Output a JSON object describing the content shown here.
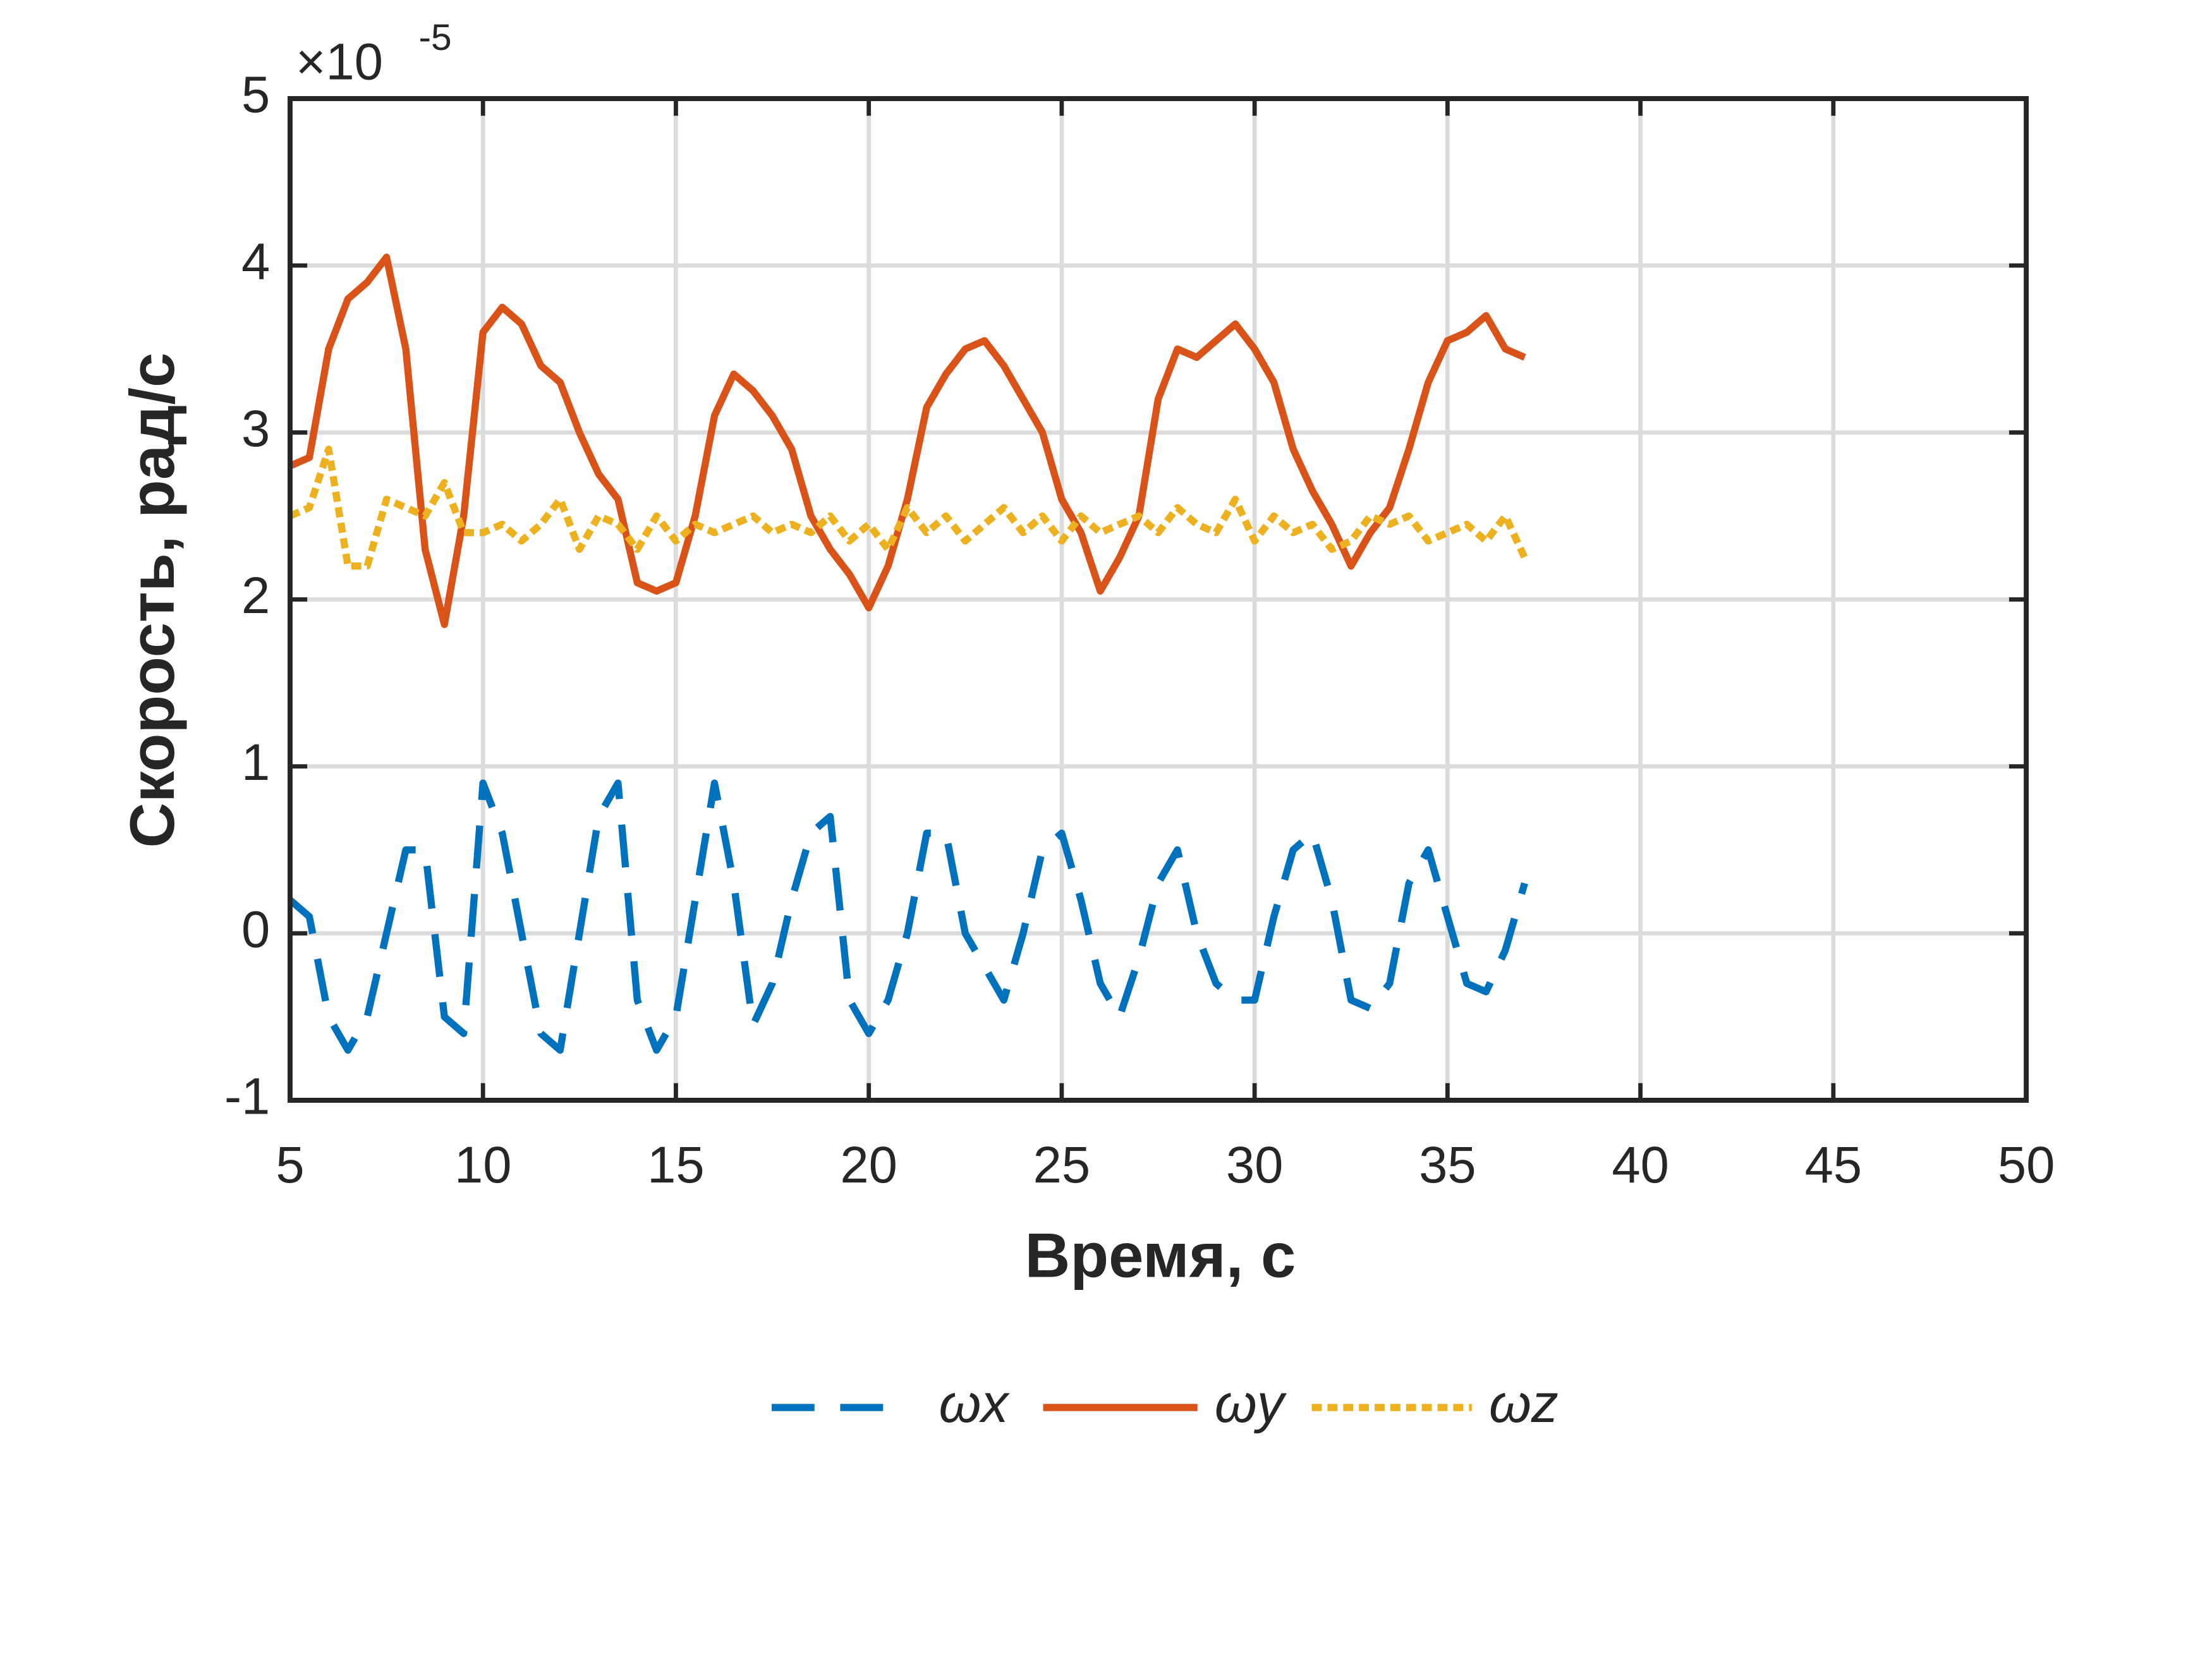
{
  "chart_data": {
    "type": "line",
    "xlabel": "Время, с",
    "ylabel": "Скорость, рад/с",
    "y_multiplier": {
      "base": "×10",
      "exponent": "-5"
    },
    "xlim": [
      5,
      50
    ],
    "ylim": [
      -1,
      5
    ],
    "xticks": [
      5,
      10,
      15,
      20,
      25,
      30,
      35,
      40,
      45,
      50
    ],
    "yticks": [
      -1,
      0,
      1,
      2,
      3,
      4,
      5
    ],
    "grid": true,
    "legend": "bottom",
    "x": [
      5,
      5.5,
      6,
      6.5,
      7,
      7.5,
      8,
      8.5,
      9,
      9.5,
      10,
      10.5,
      11,
      11.5,
      12,
      12.5,
      13,
      13.5,
      14,
      14.5,
      15,
      15.5,
      16,
      16.5,
      17,
      17.5,
      18,
      18.5,
      19,
      19.5,
      20,
      20.5,
      21,
      21.5,
      22,
      22.5,
      23,
      23.5,
      24,
      24.5,
      25,
      25.5,
      26,
      26.5,
      27,
      27.5,
      28,
      28.5,
      29,
      29.5,
      30,
      30.5,
      31,
      31.5,
      32,
      32.5,
      33,
      33.5,
      34,
      34.5,
      35,
      35.5,
      36,
      36.5,
      37
    ],
    "series": [
      {
        "name": "ωx",
        "color": "#0072BD",
        "dash": "dashed",
        "values": [
          0.2,
          0.1,
          -0.5,
          -0.7,
          -0.5,
          0.0,
          0.5,
          0.5,
          -0.5,
          -0.6,
          0.9,
          0.6,
          0.0,
          -0.6,
          -0.7,
          0.0,
          0.7,
          0.9,
          -0.4,
          -0.7,
          -0.5,
          0.2,
          0.9,
          0.3,
          -0.55,
          -0.3,
          0.2,
          0.6,
          0.7,
          -0.4,
          -0.6,
          -0.4,
          0.0,
          0.6,
          0.6,
          0.0,
          -0.2,
          -0.4,
          0.0,
          0.5,
          0.6,
          0.2,
          -0.3,
          -0.5,
          -0.15,
          0.3,
          0.5,
          0.0,
          -0.3,
          -0.4,
          -0.4,
          0.1,
          0.5,
          0.6,
          0.2,
          -0.4,
          -0.45,
          -0.3,
          0.3,
          0.5,
          0.1,
          -0.3,
          -0.35,
          -0.1,
          0.3
        ]
      },
      {
        "name": "ωy",
        "color": "#D95319",
        "dash": "solid",
        "values": [
          2.8,
          2.85,
          3.5,
          3.8,
          3.9,
          4.05,
          3.5,
          2.3,
          1.85,
          2.5,
          3.6,
          3.75,
          3.65,
          3.4,
          3.3,
          3.0,
          2.75,
          2.6,
          2.1,
          2.05,
          2.1,
          2.5,
          3.1,
          3.35,
          3.25,
          3.1,
          2.9,
          2.5,
          2.3,
          2.15,
          1.95,
          2.2,
          2.6,
          3.15,
          3.35,
          3.5,
          3.55,
          3.4,
          3.2,
          3.0,
          2.6,
          2.4,
          2.05,
          2.25,
          2.5,
          3.2,
          3.5,
          3.45,
          3.55,
          3.65,
          3.5,
          3.3,
          2.9,
          2.65,
          2.45,
          2.2,
          2.4,
          2.55,
          2.9,
          3.3,
          3.55,
          3.6,
          3.7,
          3.5,
          3.45
        ]
      },
      {
        "name": "ωz",
        "color": "#EDB120",
        "dash": "dotted",
        "values": [
          2.5,
          2.55,
          2.9,
          2.2,
          2.2,
          2.6,
          2.55,
          2.5,
          2.7,
          2.4,
          2.4,
          2.45,
          2.35,
          2.45,
          2.6,
          2.3,
          2.5,
          2.45,
          2.3,
          2.5,
          2.35,
          2.45,
          2.4,
          2.45,
          2.5,
          2.4,
          2.45,
          2.4,
          2.5,
          2.35,
          2.45,
          2.3,
          2.55,
          2.4,
          2.5,
          2.35,
          2.45,
          2.55,
          2.4,
          2.5,
          2.35,
          2.5,
          2.4,
          2.45,
          2.5,
          2.4,
          2.55,
          2.45,
          2.4,
          2.6,
          2.35,
          2.5,
          2.4,
          2.45,
          2.3,
          2.35,
          2.5,
          2.45,
          2.5,
          2.35,
          2.4,
          2.45,
          2.35,
          2.5,
          2.25
        ]
      }
    ]
  }
}
